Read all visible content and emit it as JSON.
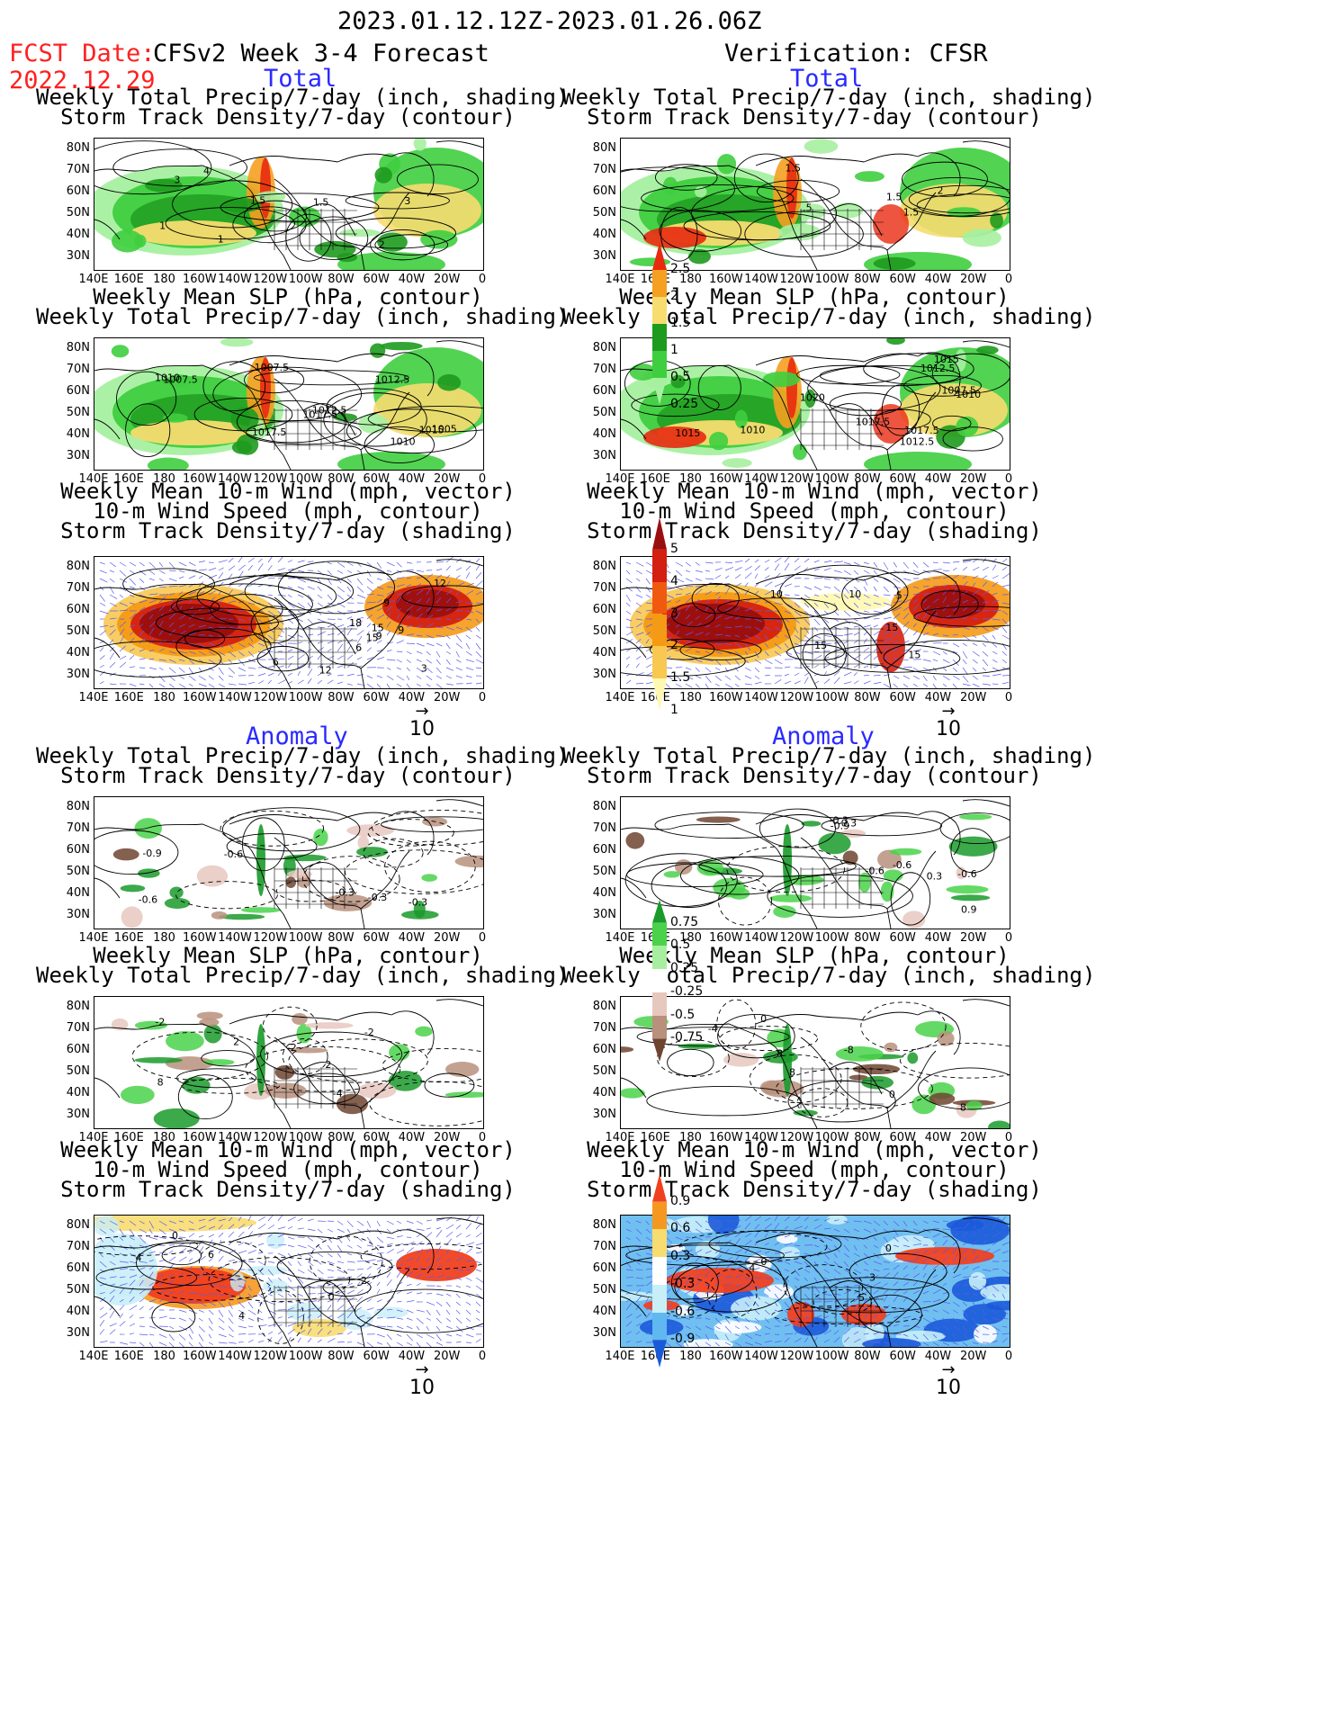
{
  "header": {
    "period": "2023.01.12.12Z-2023.01.26.06Z",
    "fcst_label": "FCST Date:",
    "fcst_date": "2022.12.29",
    "left_title": "CFSv2 Week 3-4 Forecast",
    "right_title": "Verification: CFSR",
    "total": "Total",
    "anomaly": "Anomaly"
  },
  "panel_titles": {
    "precip_storm": [
      "Weekly Total Precip/7-day (inch, shading)",
      "Storm Track Density/7-day (contour)"
    ],
    "slp_precip": [
      "Weekly Mean SLP (hPa, contour)",
      "Weekly Total Precip/7-day (inch, shading)"
    ],
    "wind_storm": [
      "Weekly Mean 10-m Wind (mph, vector)",
      "10-m Wind Speed (mph, contour)",
      "Storm Track Density/7-day (shading)"
    ]
  },
  "axes": {
    "lat_labels": [
      "80N",
      "70N",
      "60N",
      "50N",
      "40N",
      "30N"
    ],
    "lon_labels": [
      "140E",
      "160E",
      "180",
      "160W",
      "140W",
      "120W",
      "100W",
      "80W",
      "60W",
      "40W",
      "20W",
      "0"
    ]
  },
  "vector_ref": "10",
  "colorbars": {
    "total_precip": {
      "labels": [
        "2.5",
        "2",
        "1.5",
        "1",
        "0.5",
        "0.25"
      ],
      "colors": [
        "#e82a10",
        "#f5a020",
        "#f7dc70",
        "#1e9a1e",
        "#3fce3f",
        "#a6f0a0"
      ]
    },
    "total_storm": {
      "labels": [
        "5",
        "4",
        "3",
        "2",
        "1.5",
        "1"
      ],
      "colors": [
        "#9a0e0e",
        "#d42010",
        "#f05a10",
        "#f59a14",
        "#f8c850",
        "#fff8b0"
      ]
    },
    "anom_precip": {
      "labels": [
        "0.75",
        "0.5",
        "0.25",
        "-0.25",
        "-0.5",
        "-0.75"
      ],
      "colors": [
        "#1a9a2a",
        "#4ad24a",
        "#a8eea0",
        "#ffffff",
        "#e6c8be",
        "#b8907c",
        "#6e4430"
      ]
    },
    "anom_storm": {
      "labels": [
        "0.9",
        "0.6",
        "0.3",
        "-0.3",
        "-0.6",
        "-0.9"
      ],
      "colors": [
        "#f04020",
        "#f59820",
        "#f8dc70",
        "#ffffff",
        "#c8eef8",
        "#60b8f0",
        "#1a5ad8"
      ]
    }
  },
  "panels": [
    {
      "id": "fc-total-precip",
      "type": "total_precip",
      "labels": [
        "4",
        "3",
        "1.5",
        "2",
        "1",
        "3",
        "1.5",
        "1"
      ]
    },
    {
      "id": "ob-total-precip",
      "type": "total_precip",
      "labels": [
        "2",
        "1.5",
        ".5",
        "1.5",
        "1.5"
      ]
    },
    {
      "id": "fc-total-slp",
      "type": "total_precip_slp",
      "labels": [
        "1012.5",
        "1015",
        "1017.5",
        "1012.5",
        "1007.5",
        "1005",
        "1007.5",
        "1010",
        "1017.5",
        "1010"
      ]
    },
    {
      "id": "ob-total-slp",
      "type": "total_precip_slp",
      "labels": [
        "1010",
        "1020",
        "1017.5",
        "1012.5",
        "1015",
        "1015",
        "1012.5",
        "1010",
        "1007.5",
        "1017.5"
      ]
    },
    {
      "id": "fc-total-wind",
      "type": "total_storm",
      "labels": [
        "3",
        "12",
        "6",
        "15",
        "18",
        "9",
        "12",
        "9",
        "6",
        "15",
        "9"
      ]
    },
    {
      "id": "ob-total-wind",
      "type": "total_storm",
      "labels": [
        "10",
        "15",
        "15",
        "5",
        "10",
        "15"
      ]
    },
    {
      "id": "fc-anom-precip",
      "type": "anom_precip",
      "labels": [
        "-0.6",
        "-0.9",
        "-0.3",
        "-0.3",
        "-0.6",
        "-0.3"
      ]
    },
    {
      "id": "ob-anom-precip",
      "type": "anom_precip",
      "labels": [
        "-0.6",
        "-0.3",
        "0.9",
        "-0.6",
        "-0.6",
        "-0.3",
        "0.3",
        "-0.9"
      ]
    },
    {
      "id": "fc-anom-slp",
      "type": "anom_precip_slp",
      "labels": [
        "-4",
        "8",
        "-2",
        "-2",
        "2",
        "-2",
        "2"
      ]
    },
    {
      "id": "ob-anom-slp",
      "type": "anom_precip_slp",
      "labels": [
        "0",
        "-8",
        "-4",
        "0",
        "8",
        "8",
        "8"
      ]
    },
    {
      "id": "fc-anom-wind",
      "type": "anom_storm",
      "labels": [
        "4",
        "0",
        "6",
        "2",
        "0",
        "4"
      ]
    },
    {
      "id": "ob-anom-wind",
      "type": "anom_storm",
      "labels": [
        "3",
        "5",
        "0",
        "0",
        "4"
      ]
    }
  ]
}
